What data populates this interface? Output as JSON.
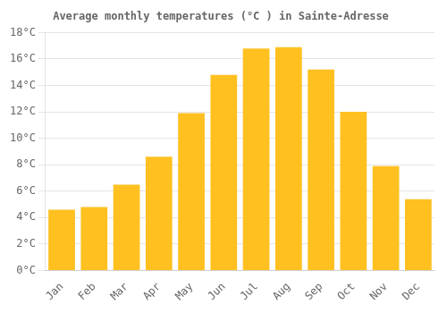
{
  "chart_data": {
    "type": "bar",
    "title": "Average monthly temperatures (°C ) in Sainte-Adresse",
    "categories": [
      "Jan",
      "Feb",
      "Mar",
      "Apr",
      "May",
      "Jun",
      "Jul",
      "Aug",
      "Sep",
      "Oct",
      "Nov",
      "Dec"
    ],
    "values": [
      4.6,
      4.8,
      6.5,
      8.6,
      11.9,
      14.8,
      16.8,
      16.9,
      15.2,
      12.0,
      7.9,
      5.4
    ],
    "color": "#FFC020",
    "ylim": [
      0,
      18
    ],
    "yticks": [
      {
        "value": 0,
        "label": "0°C"
      },
      {
        "value": 2,
        "label": "2°C"
      },
      {
        "value": 4,
        "label": "4°C"
      },
      {
        "value": 6,
        "label": "6°C"
      },
      {
        "value": 8,
        "label": "8°C"
      },
      {
        "value": 10,
        "label": "10°C"
      },
      {
        "value": 12,
        "label": "12°C"
      },
      {
        "value": 14,
        "label": "14°C"
      },
      {
        "value": 16,
        "label": "16°C"
      },
      {
        "value": 18,
        "label": "18°C"
      }
    ],
    "grid": true
  }
}
